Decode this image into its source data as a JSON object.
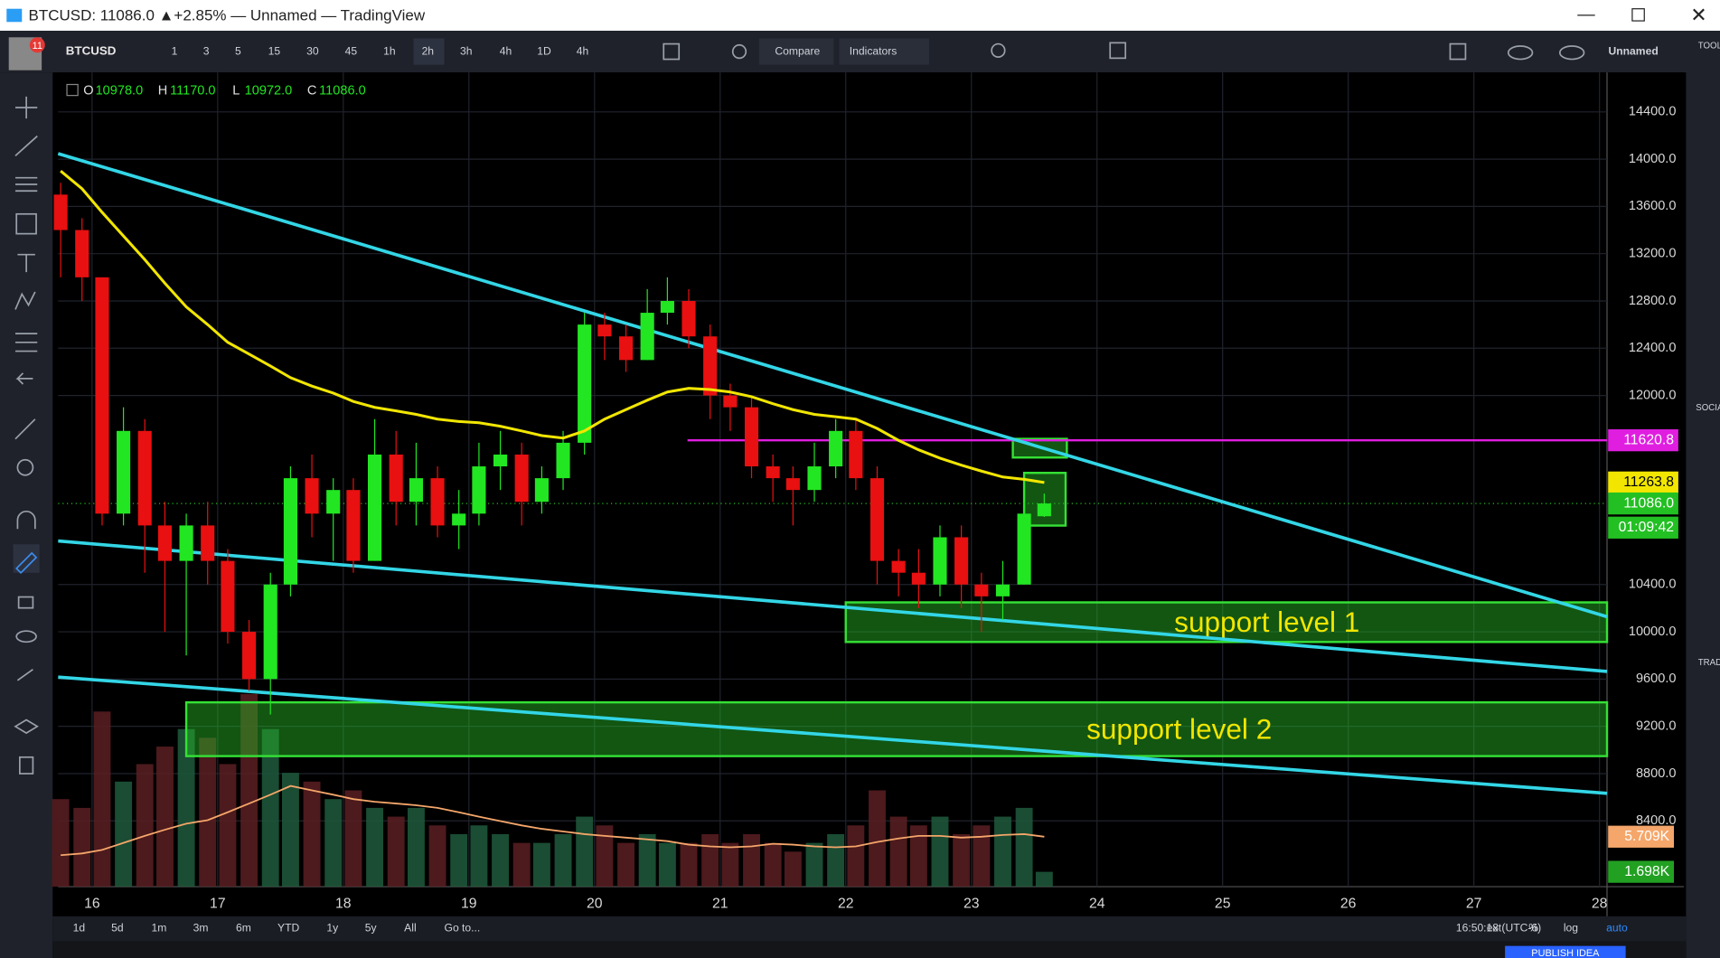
{
  "window": {
    "title": "BTCUSD: 11086.0 ▲+2.85% — Unnamed — TradingView"
  },
  "toolbar": {
    "symbol": "BTCUSD",
    "badge": "11",
    "intervals": [
      "1",
      "3",
      "5",
      "15",
      "30",
      "45",
      "1h",
      "2h",
      "3h",
      "4h",
      "1D",
      "4h"
    ],
    "compare": "Compare",
    "indicators": "Indicators",
    "layout": "Unnamed"
  },
  "side_panel": {
    "tools": "TOOL",
    "social": "SOCIA",
    "trade": "TRAD",
    "publish": "PUBLISH IDEA"
  },
  "bottom_bar": {
    "ranges": [
      "1d",
      "5d",
      "1m",
      "3m",
      "6m",
      "YTD",
      "1y",
      "5y",
      "All"
    ],
    "goto": "Go to...",
    "time": "16:50:18 (UTC-6)",
    "ext": "ext",
    "percent": "%",
    "log": "log",
    "auto": "auto"
  },
  "ohlc_legend": [
    {
      "key": "O",
      "text": "10978.0"
    },
    {
      "key": "H",
      "text": "11170.0"
    },
    {
      "key": "L",
      "text": "10972.0"
    },
    {
      "key": "C",
      "text": "11086.0"
    }
  ],
  "chart_data": {
    "type": "candlestick",
    "up_color": "#22e622",
    "down_color": "#e81010",
    "x": [
      15.75,
      15.92,
      16.08,
      16.25,
      16.42,
      16.58,
      16.75,
      16.92,
      17.08,
      17.25,
      17.42,
      17.58,
      17.75,
      17.92,
      18.08,
      18.25,
      18.42,
      18.58,
      18.75,
      18.92,
      19.08,
      19.25,
      19.42,
      19.58,
      19.75,
      19.92,
      20.08,
      20.25,
      20.42,
      20.58,
      20.75,
      20.92,
      21.08,
      21.25,
      21.42,
      21.58,
      21.75,
      21.92,
      22.08,
      22.25,
      22.42,
      22.58,
      22.75,
      22.92,
      23.08,
      23.25,
      23.42,
      23.58
    ],
    "open": [
      13700,
      13400,
      13000,
      11000,
      11700,
      10900,
      10600,
      10900,
      10600,
      10000,
      9600,
      10400,
      11300,
      11000,
      11200,
      10600,
      11500,
      11100,
      11300,
      10900,
      11000,
      11400,
      11500,
      11100,
      11300,
      11600,
      12600,
      12500,
      12300,
      12700,
      12800,
      12500,
      12000,
      11900,
      11400,
      11300,
      11200,
      11400,
      11700,
      11300,
      10600,
      10500,
      10400,
      10800,
      10400,
      10300,
      10400,
      10978
    ],
    "high": [
      13800,
      13500,
      13000,
      11900,
      11800,
      11100,
      11000,
      11100,
      10700,
      10100,
      10500,
      11400,
      11500,
      11300,
      11300,
      11800,
      11700,
      11600,
      11400,
      11200,
      11600,
      11700,
      11600,
      11400,
      11700,
      12700,
      12700,
      12600,
      12900,
      13000,
      12900,
      12600,
      12100,
      12000,
      11500,
      11400,
      11600,
      11800,
      11800,
      11400,
      10700,
      10700,
      10900,
      10900,
      10500,
      10600,
      11100,
      11170
    ],
    "low": [
      13000,
      12800,
      10900,
      10900,
      10500,
      10000,
      9800,
      10400,
      9900,
      9500,
      9300,
      10300,
      10800,
      10600,
      10500,
      10600,
      10900,
      10900,
      10800,
      10700,
      10900,
      11200,
      10900,
      11000,
      11200,
      11500,
      12300,
      12200,
      12300,
      12600,
      12400,
      11800,
      11700,
      11300,
      11100,
      10900,
      11100,
      11300,
      11200,
      10400,
      10300,
      10200,
      10300,
      10200,
      10000,
      10100,
      10400,
      10972
    ],
    "close": [
      13400,
      13000,
      11000,
      11700,
      10900,
      10600,
      10900,
      10600,
      10000,
      9600,
      10400,
      11300,
      11000,
      11200,
      10600,
      11500,
      11100,
      11300,
      10900,
      11000,
      11400,
      11500,
      11100,
      11300,
      11600,
      12600,
      12500,
      12300,
      12700,
      12800,
      12500,
      12000,
      11900,
      11400,
      11300,
      11200,
      11400,
      11700,
      11300,
      10600,
      10500,
      10400,
      10800,
      10400,
      10300,
      10400,
      11000,
      11086
    ],
    "ma": {
      "color": "#f2e600",
      "values": [
        13900,
        13750,
        13550,
        13350,
        13150,
        12950,
        12750,
        12600,
        12450,
        12350,
        12250,
        12150,
        12080,
        12020,
        11950,
        11900,
        11870,
        11840,
        11800,
        11780,
        11770,
        11740,
        11700,
        11660,
        11640,
        11700,
        11800,
        11880,
        11960,
        12030,
        12060,
        12050,
        12030,
        11990,
        11930,
        11880,
        11840,
        11820,
        11800,
        11720,
        11620,
        11540,
        11470,
        11410,
        11360,
        11310,
        11290,
        11263.8
      ]
    },
    "volume": [
      10,
      9,
      20,
      12,
      14,
      16,
      18,
      17,
      14,
      22,
      18,
      13,
      12,
      10,
      11,
      9,
      8,
      9,
      7,
      6,
      7,
      6,
      5,
      5,
      6,
      8,
      7,
      5,
      6,
      5,
      5,
      6,
      5,
      6,
      5,
      4,
      5,
      6,
      7,
      11,
      8,
      7,
      8,
      6,
      7,
      8,
      9,
      1.698
    ],
    "volume_ma": {
      "color": "#f5a66a",
      "values": [
        3.6,
        3.8,
        4.2,
        5.0,
        5.8,
        6.5,
        7.2,
        7.6,
        8.5,
        9.5,
        10.5,
        11.5,
        11.0,
        10.5,
        10.0,
        9.7,
        9.5,
        9.3,
        9.0,
        8.5,
        8.0,
        7.5,
        7.0,
        6.6,
        6.3,
        6.0,
        5.8,
        5.6,
        5.4,
        5.2,
        4.8,
        4.6,
        4.5,
        4.6,
        4.9,
        4.8,
        4.6,
        4.5,
        4.6,
        5.1,
        5.5,
        5.8,
        5.8,
        5.6,
        5.7,
        5.9,
        6.0,
        5.709
      ]
    },
    "xlim": [
      15.73,
      28.06
    ],
    "xticks": [
      16,
      17,
      18,
      19,
      20,
      21,
      22,
      23,
      24,
      25,
      26,
      27,
      28
    ],
    "ylim": [
      7843,
      14734
    ],
    "yticks": [
      {
        "value": 8400,
        "label": "8400.0"
      },
      {
        "value": 8800,
        "label": "8800.0"
      },
      {
        "value": 9200,
        "label": "9200.0"
      },
      {
        "value": 9600,
        "label": "9600.0"
      },
      {
        "value": 10000,
        "label": "10000.0"
      },
      {
        "value": 10400,
        "label": "10400.0"
      },
      {
        "value": 12000,
        "label": "12000.0"
      },
      {
        "value": 12400,
        "label": "12400.0"
      },
      {
        "value": 12800,
        "label": "12800.0"
      },
      {
        "value": 13200,
        "label": "13200.0"
      },
      {
        "value": 13600,
        "label": "13600.0"
      },
      {
        "value": 14000,
        "label": "14000.0"
      },
      {
        "value": 14400,
        "label": "14400.0"
      }
    ],
    "vlim": [
      0,
      93
    ],
    "grid": true,
    "price_badges": [
      {
        "value": 11620.8,
        "color": "#e01ee0"
      },
      {
        "value": 11263.8,
        "color": "#f2e600"
      },
      {
        "value": {
          "value": 11086.0,
          "label": "11086.0"
        },
        "color": "#22c022",
        "countdown": "01:09:42"
      }
    ],
    "volume_badges": [
      {
        "value": {
          "value": 5.709,
          "label": "5.709K"
        },
        "color": "#f5a66a"
      },
      {
        "value": {
          "value": 1.698,
          "label": "1.698K"
        },
        "color": "#22a022"
      }
    ],
    "trend_lines": [
      {
        "from": [
          15.73,
          14047
        ],
        "to": [
          28.06,
          10128
        ],
        "color": "#33d6e6"
      },
      {
        "from": [
          15.73,
          10769
        ],
        "to": [
          28.06,
          9664
        ],
        "color": "#33d6e6"
      },
      {
        "from": [
          15.73,
          9617
        ],
        "to": [
          28.06,
          8633
        ],
        "color": "#33d6e6"
      }
    ],
    "horizontal_line": {
      "from": 20.74,
      "to": 28.06,
      "value": 11620.8,
      "color": "#e01ee0"
    },
    "boxes": [
      {
        "x": [
          22.0,
          28.06
        ],
        "y": [
          9914,
          10249
        ],
        "label": "support level 1"
      },
      {
        "x": [
          16.75,
          28.06
        ],
        "y": [
          8948,
          9403
        ],
        "label": "support level 2"
      },
      {
        "x": [
          23.33,
          23.76
        ],
        "y": [
          11475,
          11633
        ]
      },
      {
        "x": [
          23.42,
          23.75
        ],
        "y": [
          10899,
          11345
        ]
      }
    ]
  }
}
